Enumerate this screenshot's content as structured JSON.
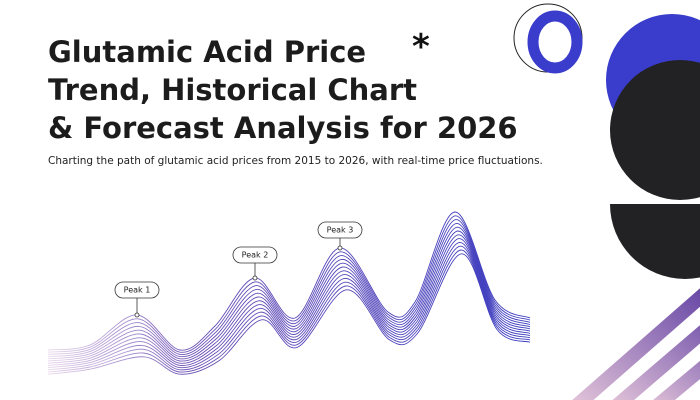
{
  "header": {
    "title": [
      "Glutamic Acid Price",
      "Trend, Historical Chart",
      "& Forecast Analysis for 2026"
    ],
    "subtitle": "Charting the path of glutamic acid prices from 2015 to 2026, with real-time price fluctuations."
  },
  "peaks": [
    "Peak 1",
    "Peak 2",
    "Peak 3"
  ]
}
